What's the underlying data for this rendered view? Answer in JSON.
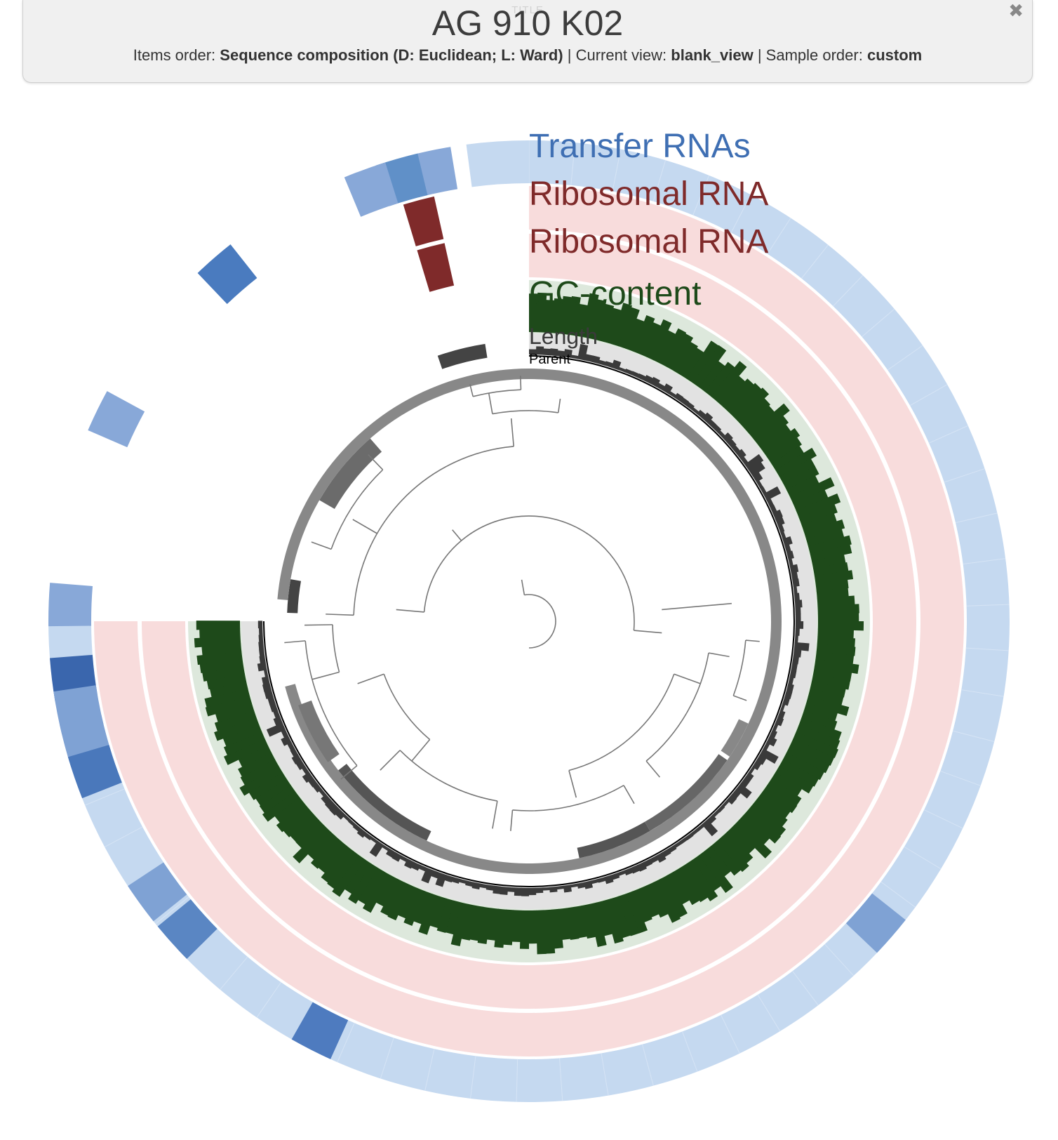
{
  "header": {
    "ghost_label": "TITLE",
    "title": "AG 910 K02",
    "items_order_label": "Items order:",
    "items_order_value": "Sequence composition (D: Euclidean; L: Ward)",
    "current_view_label": "Current view:",
    "current_view_value": "blank_view",
    "sample_order_label": "Sample order:",
    "sample_order_value": "custom",
    "separator": "|",
    "close_icon": "close-icon"
  },
  "layers": {
    "transfer_rnas": {
      "label": "Transfer RNAs",
      "color": "#3f6fb3",
      "bg": "#c5d9f0"
    },
    "ribosomal_rna_1": {
      "label": "Ribosomal RNA",
      "color": "#7f2a2a",
      "bg": "#f8dcdc"
    },
    "ribosomal_rna_2": {
      "label": "Ribosomal RNA",
      "color": "#7f2a2a",
      "bg": "#f8dcdc"
    },
    "gc_content": {
      "label": "GC-content",
      "color": "#1e4a1a",
      "bg": "#dde8dc"
    },
    "length": {
      "label": "Length",
      "color": "#3a3a3a",
      "bg": "#e2e2e2"
    },
    "parent": {
      "label": "Parent",
      "color": "#000000"
    }
  }
}
